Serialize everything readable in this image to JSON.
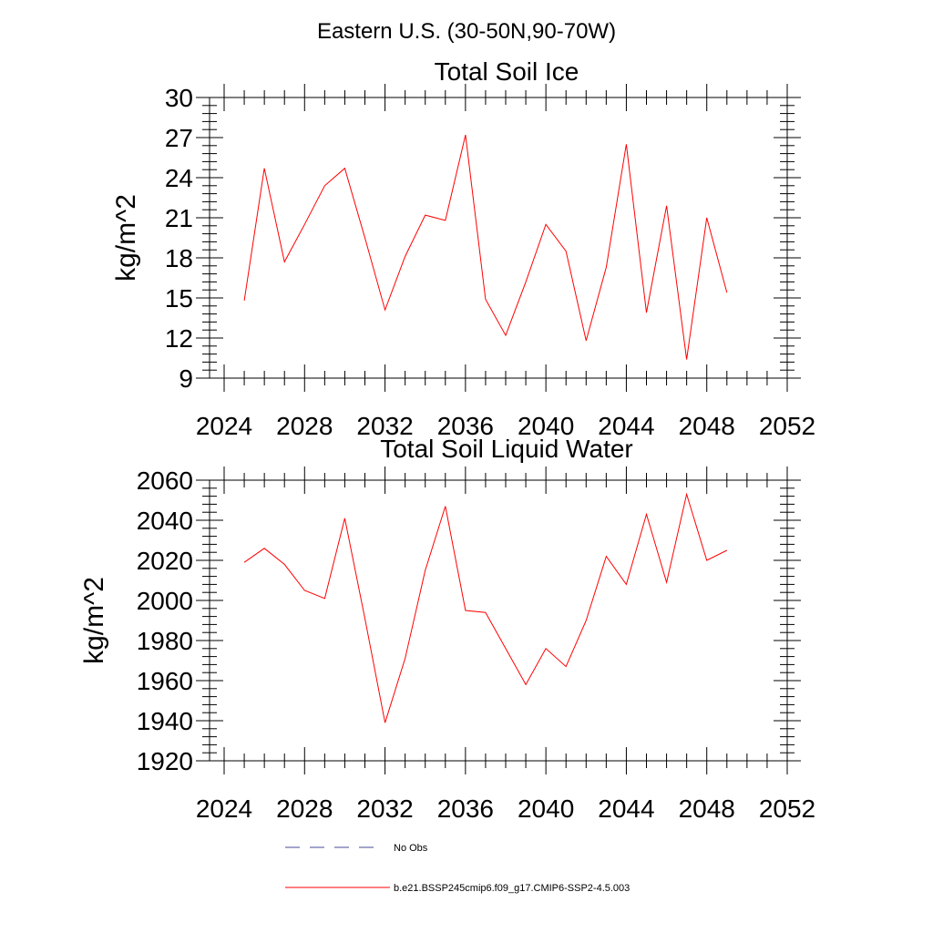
{
  "figure_title": "Eastern U.S. (30-50N,90-70W)",
  "chart_data": [
    {
      "type": "line",
      "title": "Total Soil Ice",
      "xlabel": "",
      "ylabel": "kg/m^2",
      "xlim": [
        2024,
        2052
      ],
      "ylim": [
        9,
        30
      ],
      "xticks": [
        2024,
        2028,
        2032,
        2036,
        2040,
        2044,
        2048,
        2052
      ],
      "yticks": [
        9,
        12,
        15,
        18,
        21,
        24,
        27,
        30
      ],
      "series": [
        {
          "name": "b.e21.BSSP245cmip6.f09_g17.CMIP6-SSP2-4.5.003",
          "color": "#ff0000",
          "x": [
            2025,
            2026,
            2027,
            2028,
            2029,
            2030,
            2031,
            2032,
            2033,
            2034,
            2035,
            2036,
            2037,
            2038,
            2039,
            2040,
            2041,
            2042,
            2043,
            2044,
            2045,
            2046,
            2047,
            2048,
            2049
          ],
          "values": [
            14.8,
            24.7,
            17.7,
            20.5,
            23.4,
            24.7,
            19.5,
            14.1,
            18.1,
            21.2,
            20.8,
            27.2,
            14.9,
            12.2,
            16.2,
            20.5,
            18.5,
            11.8,
            17.3,
            26.5,
            13.9,
            21.9,
            10.4,
            21.0,
            15.4
          ]
        }
      ]
    },
    {
      "type": "line",
      "title": "Total Soil Liquid Water",
      "xlabel": "",
      "ylabel": "kg/m^2",
      "xlim": [
        2024,
        2052
      ],
      "ylim": [
        1920,
        2060
      ],
      "xticks": [
        2024,
        2028,
        2032,
        2036,
        2040,
        2044,
        2048,
        2052
      ],
      "yticks": [
        1920,
        1940,
        1960,
        1980,
        2000,
        2020,
        2040,
        2060
      ],
      "series": [
        {
          "name": "b.e21.BSSP245cmip6.f09_g17.CMIP6-SSP2-4.5.003",
          "color": "#ff0000",
          "x": [
            2025,
            2026,
            2027,
            2028,
            2029,
            2030,
            2031,
            2032,
            2033,
            2034,
            2035,
            2036,
            2037,
            2038,
            2039,
            2040,
            2041,
            2042,
            2043,
            2044,
            2045,
            2046,
            2047,
            2048,
            2049
          ],
          "values": [
            2019,
            2026,
            2018,
            2005,
            2001,
            2041,
            1991,
            1939,
            1971,
            2015,
            2047,
            1995,
            1994,
            1976,
            1958,
            1976,
            1967,
            1990,
            2022,
            2008,
            2043,
            2009,
            2053,
            2020,
            2025
          ]
        }
      ]
    }
  ],
  "legend": [
    {
      "label": "No Obs",
      "style": "dashed",
      "color": "#4a4a9a"
    },
    {
      "label": "b.e21.BSSP245cmip6.f09_g17.CMIP6-SSP2-4.5.003",
      "style": "solid",
      "color": "#ff0000"
    }
  ]
}
